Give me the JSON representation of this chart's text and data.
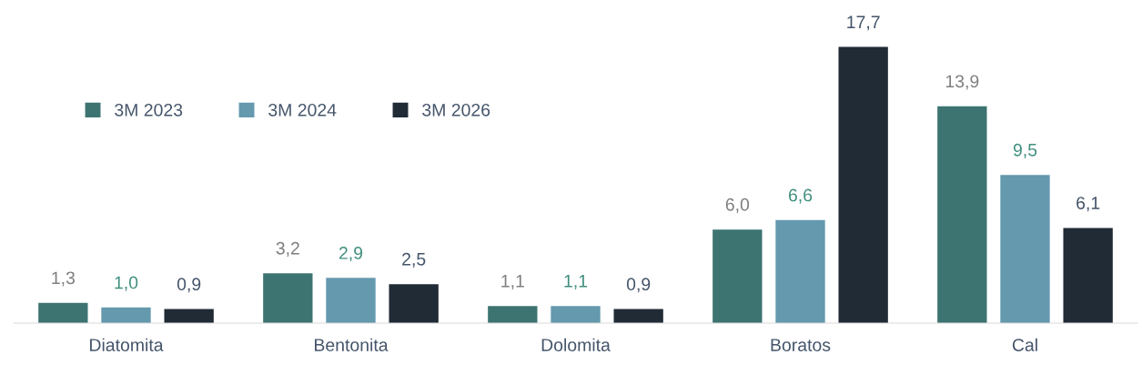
{
  "chart_data": {
    "type": "bar",
    "categories": [
      "Diatomita",
      "Bentonita",
      "Dolomita",
      "Boratos",
      "Cal"
    ],
    "series": [
      {
        "name": "3M 2023",
        "color": "#3d7472",
        "values": [
          1.3,
          3.2,
          1.1,
          6.0,
          13.9
        ],
        "value_labels": [
          "1,3",
          "3,2",
          "1,1",
          "6,0",
          "13,9"
        ]
      },
      {
        "name": "3M 2024",
        "color": "#6499ae",
        "values": [
          1.0,
          2.9,
          1.1,
          6.6,
          9.5
        ],
        "value_labels": [
          "1,0",
          "2,9",
          "1,1",
          "6,6",
          "9,5"
        ]
      },
      {
        "name": "3M 2026",
        "color": "#212b36",
        "values": [
          0.9,
          2.5,
          0.9,
          17.7,
          6.1
        ],
        "value_labels": [
          "0,9",
          "2,5",
          "0,9",
          "17,7",
          "6,1"
        ]
      }
    ],
    "legend": "top left",
    "grid": false
  }
}
